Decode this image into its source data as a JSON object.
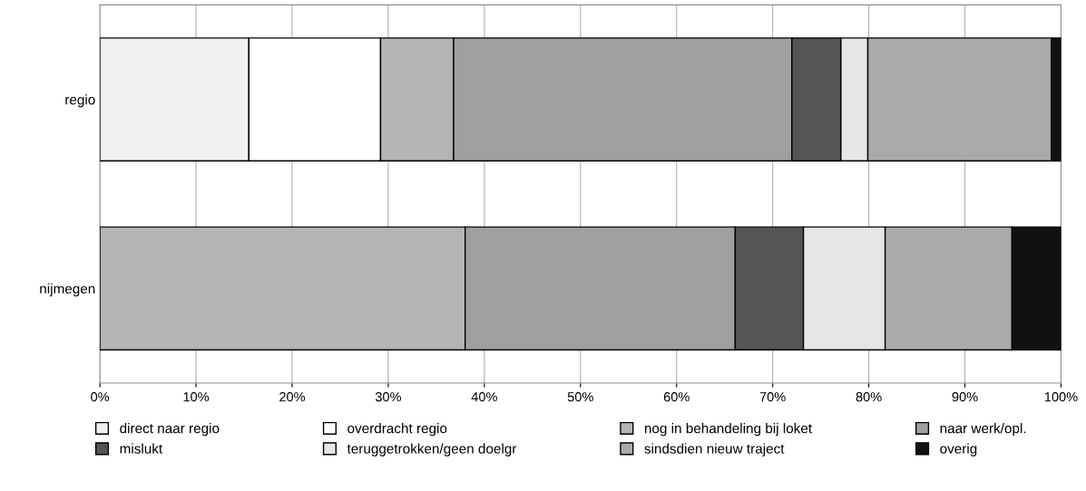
{
  "chart_data": {
    "type": "bar",
    "orientation": "horizontal",
    "stacked": true,
    "categories": [
      "regio",
      "nijmegen"
    ],
    "series": [
      {
        "name": "direct naar regio",
        "color": "#f0f0f0",
        "values": [
          15.5,
          0
        ]
      },
      {
        "name": "overdracht regio",
        "color": "#ffffff",
        "values": [
          13.7,
          0
        ]
      },
      {
        "name": "nog in behandeling bij loket",
        "color": "#b4b4b4",
        "values": [
          7.6,
          38.0
        ]
      },
      {
        "name": "naar werk/opl.",
        "color": "#a0a0a0",
        "values": [
          35.2,
          28.1
        ]
      },
      {
        "name": "mislukt",
        "color": "#555555",
        "values": [
          5.1,
          7.1
        ]
      },
      {
        "name": "teruggetrokken/geen doelgr",
        "color": "#e6e6e6",
        "values": [
          2.8,
          8.5
        ]
      },
      {
        "name": "sindsdien nieuw traject",
        "color": "#aaaaaa",
        "values": [
          19.1,
          13.2
        ]
      },
      {
        "name": "overig",
        "color": "#111111",
        "values": [
          1.0,
          5.1
        ]
      }
    ],
    "xlim": [
      0,
      100
    ],
    "xticks": [
      {
        "value": 0,
        "label": "0%"
      },
      {
        "value": 10,
        "label": "10%"
      },
      {
        "value": 20,
        "label": "20%"
      },
      {
        "value": 30,
        "label": "30%"
      },
      {
        "value": 40,
        "label": "40%"
      },
      {
        "value": 50,
        "label": "50%"
      },
      {
        "value": 60,
        "label": "60%"
      },
      {
        "value": 70,
        "label": "70%"
      },
      {
        "value": 80,
        "label": "80%"
      },
      {
        "value": 90,
        "label": "90%"
      },
      {
        "value": 100,
        "label": "100%"
      }
    ],
    "grid": "x",
    "legend": "bottom"
  }
}
